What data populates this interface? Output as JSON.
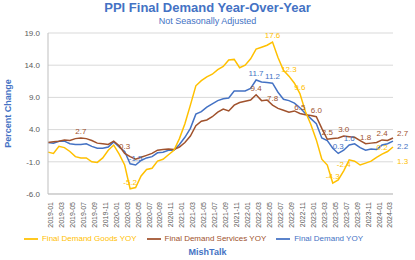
{
  "chart_data": {
    "type": "line",
    "title": "PPI Final Demand Year-Over-Year",
    "subtitle": "Not Seasonally Adjusted",
    "y_label": "Percent Change",
    "footer": "MishTalk",
    "categories": [
      "2019-01",
      null,
      "2019-03",
      null,
      "2019-05",
      null,
      "2019-07",
      null,
      "2019-09",
      null,
      "2019-11",
      null,
      "2020-01",
      null,
      "2020-03",
      null,
      "2020-05",
      null,
      "2020-07",
      null,
      "2020-09",
      null,
      "2020-11",
      null,
      "2021-01",
      null,
      "2021-03",
      null,
      "2021-05",
      null,
      "2021-07",
      null,
      "2021-09",
      null,
      "2021-11",
      null,
      "2022-01",
      null,
      "2022-03",
      null,
      "2022-05",
      null,
      "2022-07",
      null,
      "2022-09",
      null,
      "2022-11",
      null,
      "2023-01",
      null,
      "2023-03",
      null,
      "2023-05",
      null,
      "2023-07",
      null,
      "2023-09",
      null,
      "2023-11",
      null,
      "2024-01",
      null,
      "2024-03",
      null
    ],
    "series": [
      {
        "name": "Final Demand YOY",
        "color": "#4472c4",
        "values": [
          2.0,
          1.9,
          2.2,
          2.2,
          1.8,
          1.7,
          1.7,
          1.8,
          1.4,
          1.1,
          1.1,
          1.3,
          2.1,
          1.3,
          0.6,
          -1.3,
          -1.5,
          -0.8,
          -0.4,
          -0.2,
          0.4,
          0.5,
          0.8,
          0.8,
          1.7,
          2.8,
          4.2,
          6.4,
          6.8,
          7.5,
          8.0,
          8.5,
          8.8,
          8.9,
          10.0,
          10.0,
          10.0,
          10.4,
          11.7,
          11.4,
          11.3,
          11.2,
          9.8,
          8.7,
          8.5,
          8.1,
          7.4,
          6.5,
          5.7,
          4.9,
          2.7,
          2.3,
          1.1,
          0.3,
          0.8,
          1.6,
          1.8,
          1.2,
          0.8,
          1.0,
          0.9,
          1.6,
          1.8,
          2.2
        ],
        "value_labels": [
          null,
          null,
          null,
          null,
          null,
          null,
          null,
          null,
          null,
          null,
          null,
          null,
          null,
          null,
          null,
          null,
          "-1.5",
          null,
          null,
          null,
          null,
          null,
          null,
          null,
          null,
          null,
          null,
          null,
          null,
          null,
          null,
          null,
          null,
          null,
          null,
          null,
          null,
          null,
          "11.7",
          null,
          null,
          "11.2",
          null,
          null,
          null,
          null,
          null,
          null,
          null,
          null,
          null,
          null,
          null,
          "0.3",
          null,
          "1.6",
          null,
          null,
          null,
          null,
          null,
          null,
          null,
          "2.2"
        ]
      },
      {
        "name": "Final Demand Services YOY",
        "color": "#a0522d",
        "values": [
          2.0,
          2.1,
          2.2,
          2.4,
          2.3,
          2.6,
          2.7,
          2.6,
          2.3,
          1.9,
          1.8,
          1.7,
          2.2,
          1.5,
          0.3,
          -0.2,
          -0.6,
          -0.3,
          0.0,
          0.3,
          0.8,
          0.9,
          1.0,
          0.9,
          1.3,
          2.0,
          3.0,
          4.6,
          5.3,
          5.5,
          6.0,
          6.7,
          7.2,
          6.9,
          7.8,
          8.2,
          8.4,
          8.6,
          9.4,
          8.5,
          8.6,
          7.8,
          7.3,
          7.0,
          6.7,
          6.9,
          6.5,
          6.3,
          6.2,
          6.0,
          4.2,
          2.5,
          2.6,
          2.7,
          3.0,
          2.9,
          2.8,
          2.3,
          1.8,
          1.9,
          2.0,
          2.4,
          2.3,
          2.7
        ],
        "value_labels": [
          null,
          null,
          null,
          null,
          null,
          null,
          "2.7",
          null,
          null,
          null,
          null,
          null,
          null,
          null,
          "0.3",
          null,
          null,
          null,
          null,
          null,
          null,
          null,
          null,
          null,
          null,
          null,
          null,
          null,
          null,
          null,
          null,
          null,
          null,
          null,
          null,
          null,
          null,
          null,
          "9.4",
          null,
          null,
          "7.8",
          null,
          null,
          null,
          null,
          "6.5",
          null,
          null,
          "6.0",
          null,
          "2.5",
          null,
          null,
          "3.0",
          null,
          null,
          null,
          "1.8",
          null,
          null,
          "2.4",
          null,
          "2.7"
        ]
      },
      {
        "name": "Final Demand Goods YOY",
        "color": "#ffc000",
        "values": [
          0.5,
          0.3,
          1.4,
          1.2,
          0.6,
          -0.2,
          -0.4,
          -0.4,
          -1.0,
          -1.1,
          -0.4,
          0.8,
          1.6,
          0.2,
          -1.5,
          -5.2,
          -5.0,
          -3.2,
          -2.2,
          -2.0,
          -0.9,
          -0.6,
          0.1,
          0.8,
          2.6,
          4.9,
          7.8,
          10.8,
          11.6,
          12.2,
          12.6,
          13.3,
          13.8,
          14.8,
          14.9,
          13.6,
          14.0,
          15.0,
          16.5,
          16.8,
          17.1,
          17.6,
          15.2,
          13.2,
          12.3,
          11.2,
          9.6,
          6.8,
          4.8,
          2.4,
          -0.6,
          -1.5,
          -4.3,
          -3.8,
          -2.4,
          -0.7,
          -0.9,
          -1.5,
          -1.2,
          -0.9,
          -0.3,
          0.2,
          0.6,
          1.3
        ],
        "value_labels": [
          null,
          null,
          null,
          null,
          null,
          null,
          null,
          null,
          null,
          null,
          null,
          null,
          null,
          null,
          null,
          "-5.2",
          null,
          null,
          null,
          null,
          null,
          null,
          null,
          null,
          null,
          null,
          null,
          null,
          null,
          null,
          null,
          null,
          null,
          null,
          null,
          null,
          null,
          null,
          null,
          null,
          null,
          "17.6",
          null,
          null,
          "12.3",
          null,
          "9.6",
          null,
          null,
          null,
          null,
          null,
          "-4.3",
          null,
          "-2.4",
          null,
          null,
          null,
          null,
          null,
          null,
          "0.2",
          null,
          "1.3"
        ]
      }
    ],
    "ylim": [
      -6,
      19
    ],
    "yticks": [
      {
        "value": -6,
        "label": "-6.0"
      },
      {
        "value": -1,
        "label": "-1.0"
      },
      {
        "value": 4,
        "label": "4.0"
      },
      {
        "value": 9,
        "label": "9.0"
      },
      {
        "value": 14,
        "label": "14.0"
      },
      {
        "value": 19,
        "label": "19.0"
      }
    ],
    "grid": true,
    "legend": "bottom"
  }
}
